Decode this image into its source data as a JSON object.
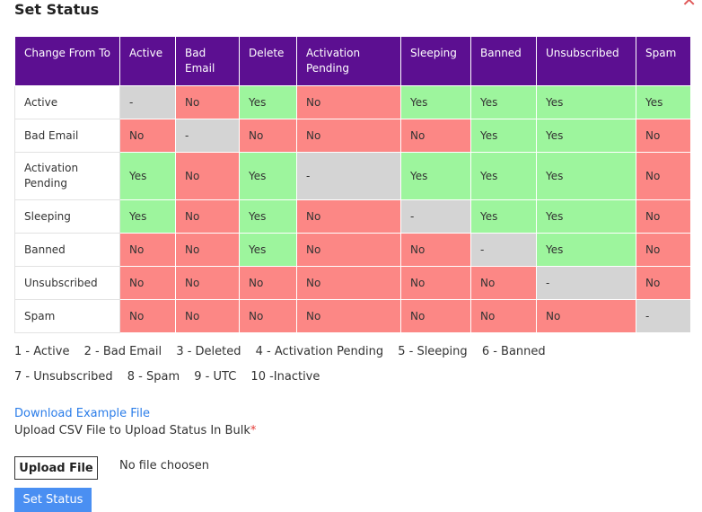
{
  "modal": {
    "title": "Set Status",
    "close_icon": "close-icon"
  },
  "table": {
    "headers": [
      "Change From To",
      "Active",
      "Bad Email",
      "Delete",
      "Activation Pending",
      "Sleeping",
      "Banned",
      "Unsubscribed",
      "Spam"
    ],
    "rows": [
      {
        "label": "Active",
        "cells": [
          "-",
          "No",
          "Yes",
          "No",
          "Yes",
          "Yes",
          "Yes",
          "Yes"
        ]
      },
      {
        "label": "Bad Email",
        "cells": [
          "No",
          "-",
          "No",
          "No",
          "No",
          "Yes",
          "Yes",
          "No"
        ]
      },
      {
        "label": "Activation Pending",
        "cells": [
          "Yes",
          "No",
          "Yes",
          "-",
          "Yes",
          "Yes",
          "Yes",
          "No"
        ]
      },
      {
        "label": "Sleeping",
        "cells": [
          "Yes",
          "No",
          "Yes",
          "No",
          "-",
          "Yes",
          "Yes",
          "No"
        ]
      },
      {
        "label": "Banned",
        "cells": [
          "No",
          "No",
          "Yes",
          "No",
          "No",
          "-",
          "Yes",
          "No"
        ]
      },
      {
        "label": "Unsubscribed",
        "cells": [
          "No",
          "No",
          "No",
          "No",
          "No",
          "No",
          "-",
          "No"
        ]
      },
      {
        "label": "Spam",
        "cells": [
          "No",
          "No",
          "No",
          "No",
          "No",
          "No",
          "No",
          "-"
        ]
      }
    ],
    "colors": {
      "header": "#5c0f91",
      "yes": "#9df59d",
      "no": "#fc8785",
      "na": "#d4d4d4"
    }
  },
  "legend": {
    "line1": [
      "1 - Active",
      "2 - Bad Email",
      "3 - Deleted",
      "4 - Activation Pending",
      "5 - Sleeping",
      "6 - Banned"
    ],
    "line2": [
      "7 - Unsubscribed",
      "8 - Spam",
      "9 - UTC",
      "10 -Inactive"
    ]
  },
  "download_link": "Download Example File",
  "upload": {
    "label": "Upload CSV File to Upload Status In Bulk",
    "required_mark": "*",
    "button": "Upload File",
    "file_status": "No file choosen"
  },
  "submit_button": "Set Status"
}
